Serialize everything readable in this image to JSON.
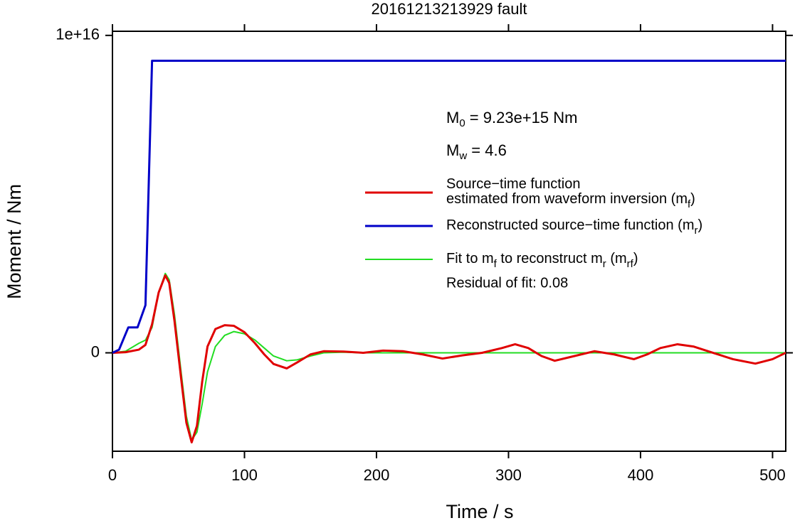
{
  "chart_data": {
    "type": "line",
    "title": "20161213213929 fault",
    "x_label": "Time / s",
    "y_label": "Moment / Nm",
    "xlim": [
      0,
      510
    ],
    "ylim": [
      -3100000000000000.0,
      1.013e+16
    ],
    "xticks": [
      0,
      100,
      200,
      300,
      400,
      500
    ],
    "yticks": [
      0,
      {
        "value": 1e+16,
        "label": "1e+16"
      }
    ],
    "annotations": [
      [
        "M",
        "0",
        " = 9.23e+15 Nm"
      ],
      [
        "M",
        "w",
        " = 4.6"
      ]
    ],
    "residual": "Residual of fit: 0.08",
    "series": [
      {
        "name": [
          [
            "Source−time function"
          ],
          [
            "estimated from waveform inversion (m",
            "f",
            ")"
          ]
        ],
        "color": "#e00000",
        "width": 3,
        "x": [
          0,
          10,
          20,
          25,
          30,
          35,
          40,
          43,
          47,
          52,
          56,
          60,
          64,
          68,
          72,
          78,
          85,
          92,
          100,
          108,
          115,
          122,
          132,
          140,
          150,
          160,
          175,
          190,
          205,
          220,
          235,
          250,
          265,
          280,
          295,
          305,
          315,
          325,
          335,
          350,
          365,
          380,
          395,
          405,
          415,
          428,
          440,
          455,
          470,
          487,
          500,
          510
        ],
        "values": [
          0,
          20000000000000.0,
          100000000000000.0,
          250000000000000.0,
          900000000000000.0,
          1900000000000000.0,
          2440000000000000.0,
          2200000000000000.0,
          1000000000000000.0,
          -800000000000000.0,
          -2200000000000000.0,
          -2820000000000000.0,
          -2300000000000000.0,
          -900000000000000.0,
          200000000000000.0,
          750000000000000.0,
          870000000000000.0,
          850000000000000.0,
          650000000000000.0,
          300000000000000.0,
          -50000000000000.0,
          -350000000000000.0,
          -490000000000000.0,
          -300000000000000.0,
          -50000000000000.0,
          50000000000000.0,
          40000000000000.0,
          0,
          70000000000000.0,
          50000000000000.0,
          -50000000000000.0,
          -180000000000000.0,
          -80000000000000.0,
          0,
          150000000000000.0,
          270000000000000.0,
          150000000000000.0,
          -100000000000000.0,
          -250000000000000.0,
          -100000000000000.0,
          50000000000000.0,
          -50000000000000.0,
          -200000000000000.0,
          -50000000000000.0,
          150000000000000.0,
          270000000000000.0,
          200000000000000.0,
          0,
          -200000000000000.0,
          -340000000000000.0,
          -200000000000000.0,
          0
        ]
      },
      {
        "name": [
          [
            "Reconstructed source−time function (m",
            "r",
            ")"
          ]
        ],
        "color": "#0000c8",
        "width": 3,
        "x": [
          0,
          5,
          12,
          19,
          25,
          30,
          510
        ],
        "values": [
          0,
          100000000000000.0,
          800000000000000.0,
          800000000000000.0,
          1500000000000000.0,
          9200000000000000.0,
          9200000000000000.0
        ]
      },
      {
        "name": [
          [
            "Fit to m",
            "f",
            " to reconstruct m",
            "r",
            " (m",
            "rf",
            ")"
          ]
        ],
        "color": "#22dd22",
        "width": 2,
        "x": [
          0,
          10,
          20,
          25,
          30,
          35,
          40,
          43,
          47,
          52,
          56,
          60,
          64,
          68,
          72,
          78,
          85,
          92,
          100,
          108,
          115,
          122,
          132,
          140,
          150,
          160,
          175,
          190,
          510
        ],
        "values": [
          0,
          50000000000000.0,
          300000000000000.0,
          400000000000000.0,
          800000000000000.0,
          1900000000000000.0,
          2500000000000000.0,
          2300000000000000.0,
          1200000000000000.0,
          -600000000000000.0,
          -2000000000000000.0,
          -2750000000000000.0,
          -2500000000000000.0,
          -1600000000000000.0,
          -600000000000000.0,
          200000000000000.0,
          550000000000000.0,
          670000000000000.0,
          600000000000000.0,
          400000000000000.0,
          150000000000000.0,
          -100000000000000.0,
          -250000000000000.0,
          -220000000000000.0,
          -100000000000000.0,
          0,
          20000000000000.0,
          0,
          0
        ]
      }
    ]
  }
}
